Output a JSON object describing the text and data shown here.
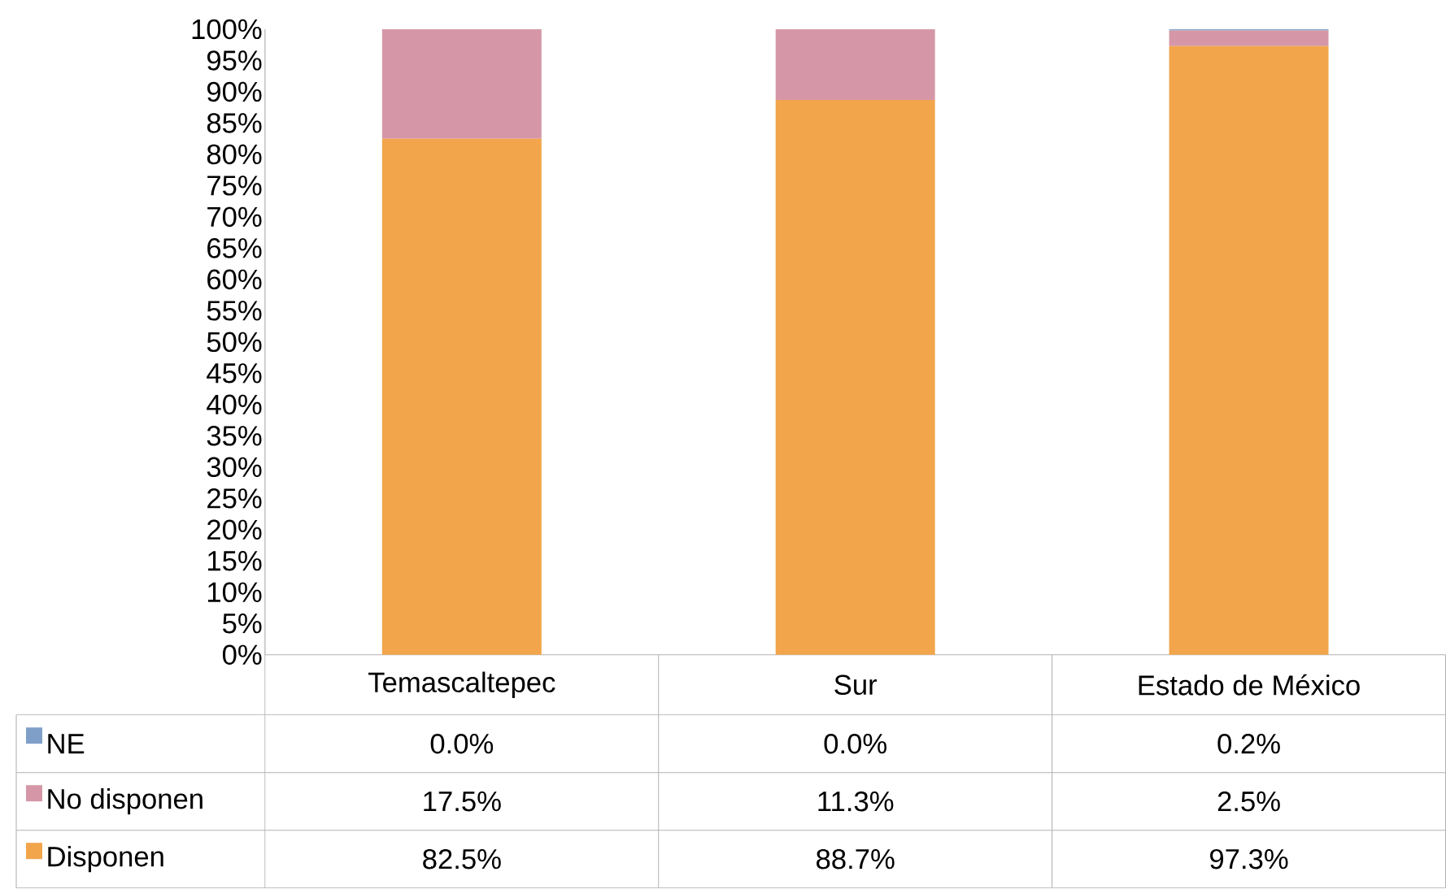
{
  "chart_data": {
    "type": "bar",
    "stacked": true,
    "legend": "bottom",
    "categories": [
      "Temascaltepec",
      "Sur",
      "Estado de México"
    ],
    "series": [
      {
        "name": "Disponen",
        "color": "#f2a54a",
        "values": [
          82.5,
          88.7,
          97.3
        ],
        "value_labels": [
          "82.5%",
          "88.7%",
          "97.3%"
        ]
      },
      {
        "name": "No disponen",
        "color": "#d597a8",
        "values": [
          17.5,
          11.3,
          2.5
        ],
        "value_labels": [
          "17.5%",
          "11.3%",
          "2.5%"
        ]
      },
      {
        "name": "NE",
        "color": "#7f9fc9",
        "values": [
          0.0,
          0.0,
          0.2
        ],
        "value_labels": [
          "0.0%",
          "0.0%",
          "0.2%"
        ]
      }
    ],
    "ylim": [
      0,
      100
    ],
    "yticks": [
      {
        "value": 0,
        "label": "0%"
      },
      {
        "value": 5,
        "label": "5%"
      },
      {
        "value": 10,
        "label": "10%"
      },
      {
        "value": 15,
        "label": "15%"
      },
      {
        "value": 20,
        "label": "20%"
      },
      {
        "value": 25,
        "label": "25%"
      },
      {
        "value": 30,
        "label": "30%"
      },
      {
        "value": 35,
        "label": "35%"
      },
      {
        "value": 40,
        "label": "40%"
      },
      {
        "value": 45,
        "label": "45%"
      },
      {
        "value": 50,
        "label": "50%"
      },
      {
        "value": 55,
        "label": "55%"
      },
      {
        "value": 60,
        "label": "60%"
      },
      {
        "value": 65,
        "label": "65%"
      },
      {
        "value": 70,
        "label": "70%"
      },
      {
        "value": 75,
        "label": "75%"
      },
      {
        "value": 80,
        "label": "80%"
      },
      {
        "value": 85,
        "label": "85%"
      },
      {
        "value": 90,
        "label": "90%"
      },
      {
        "value": 95,
        "label": "95%"
      },
      {
        "value": 100,
        "label": "100%"
      }
    ]
  }
}
